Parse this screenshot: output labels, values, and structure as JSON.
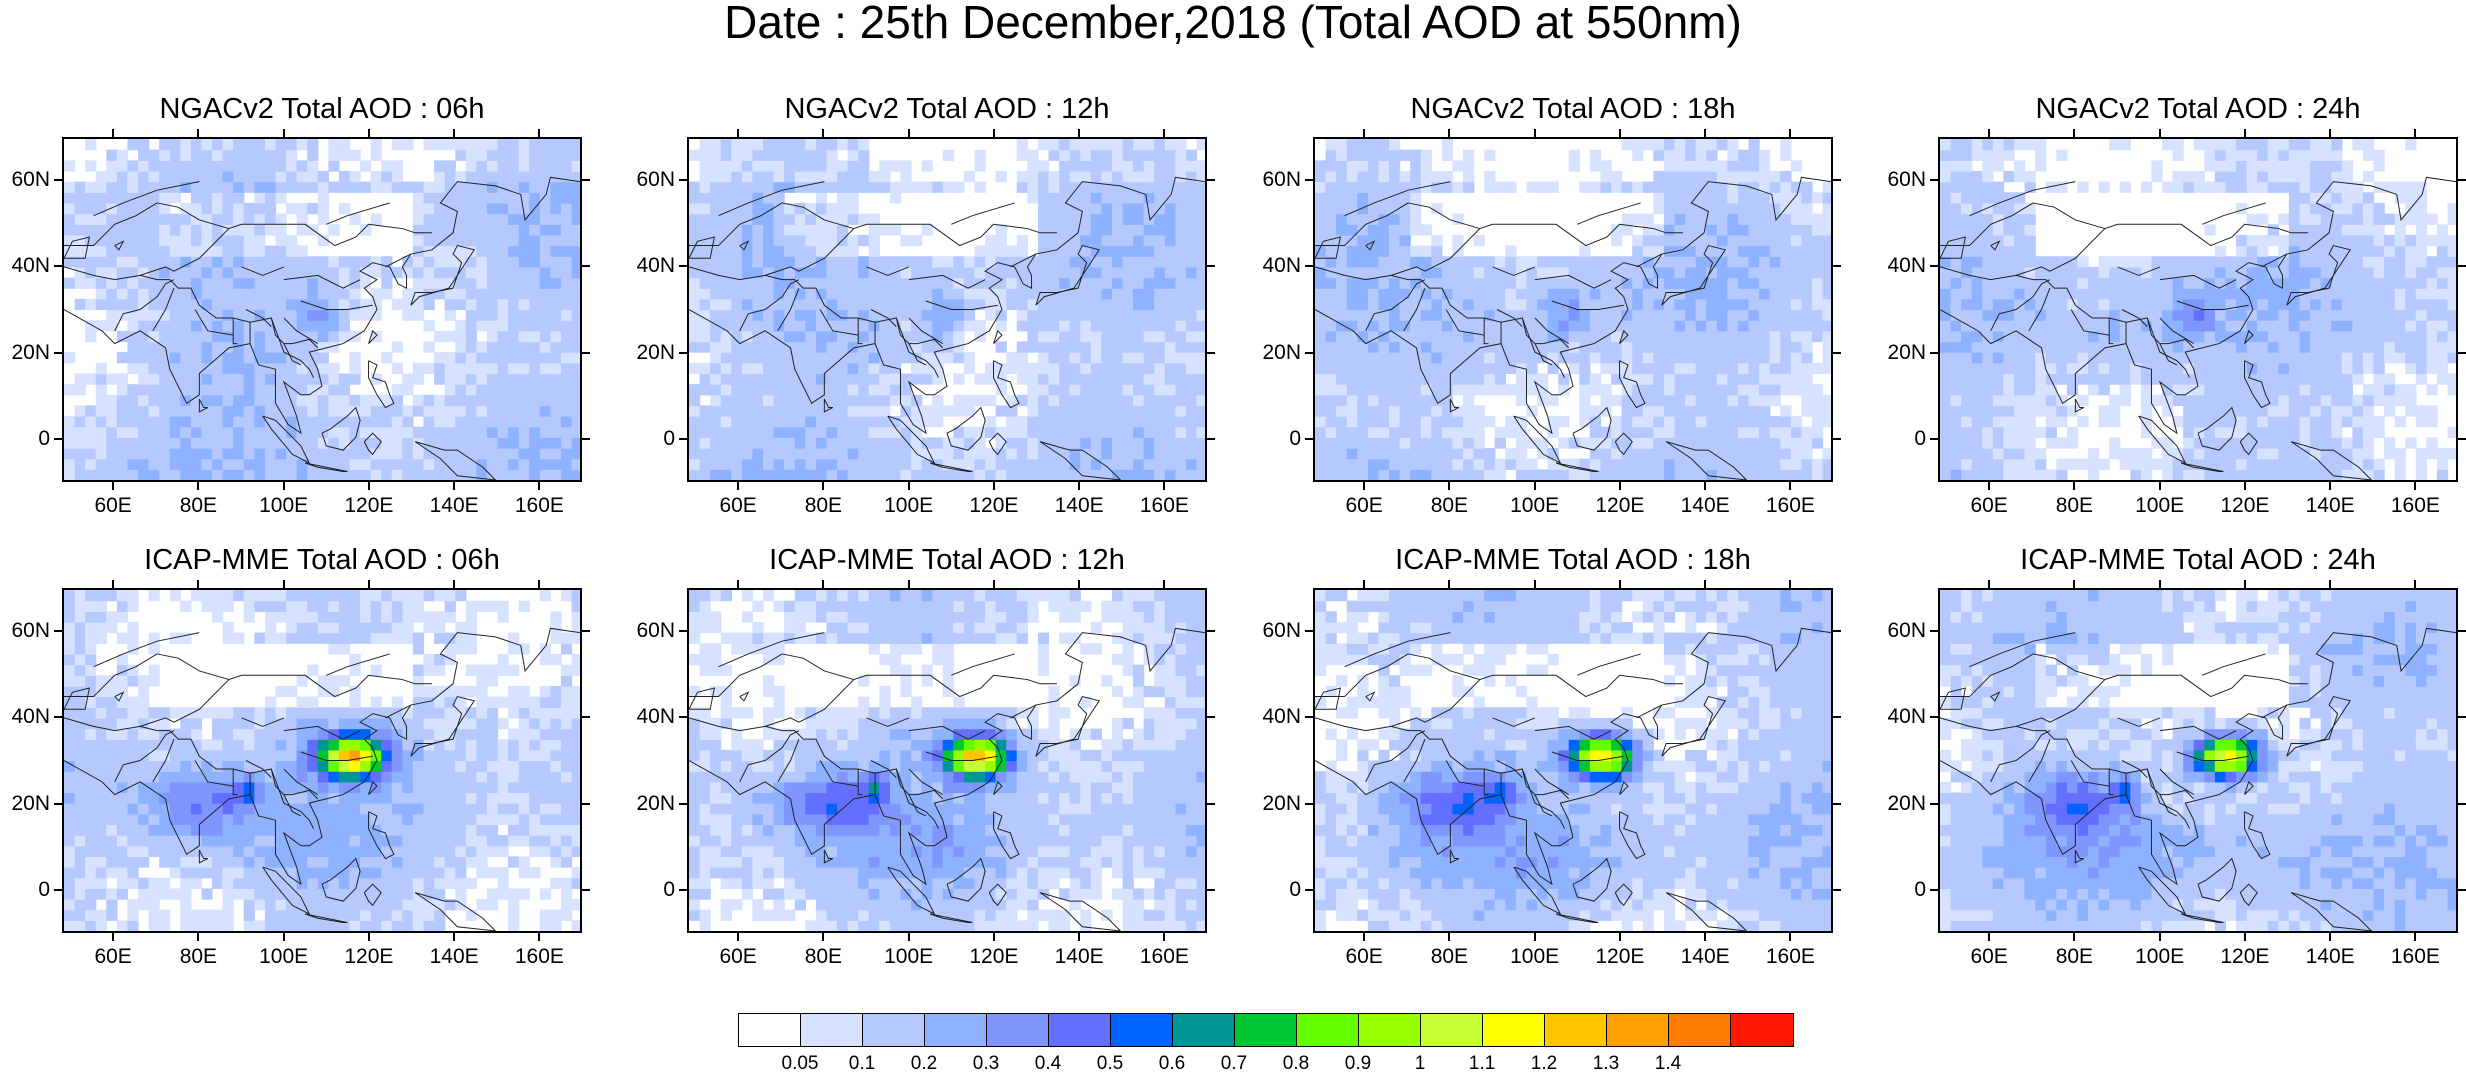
{
  "title": "Date : 25th December,2018 (Total AOD at 550nm)",
  "panels": [
    {
      "id": "ngac-06",
      "title": "NGACv2 Total AOD : 06h",
      "model": "NGACv2",
      "hour": "06h"
    },
    {
      "id": "ngac-12",
      "title": "NGACv2 Total AOD : 12h",
      "model": "NGACv2",
      "hour": "12h"
    },
    {
      "id": "ngac-18",
      "title": "NGACv2 Total AOD : 18h",
      "model": "NGACv2",
      "hour": "18h"
    },
    {
      "id": "ngac-24",
      "title": "NGACv2 Total AOD : 24h",
      "model": "NGACv2",
      "hour": "24h"
    },
    {
      "id": "icap-06",
      "title": "ICAP-MME Total AOD : 06h",
      "model": "ICAP-MME",
      "hour": "06h"
    },
    {
      "id": "icap-12",
      "title": "ICAP-MME Total AOD : 12h",
      "model": "ICAP-MME",
      "hour": "12h"
    },
    {
      "id": "icap-18",
      "title": "ICAP-MME Total AOD : 18h",
      "model": "ICAP-MME",
      "hour": "18h"
    },
    {
      "id": "icap-24",
      "title": "ICAP-MME Total AOD : 24h",
      "model": "ICAP-MME",
      "hour": "24h"
    }
  ],
  "axes": {
    "lon_range": [
      48,
      170
    ],
    "lat_range": [
      -10,
      70
    ],
    "x_ticks": [
      "60E",
      "80E",
      "100E",
      "120E",
      "140E",
      "160E"
    ],
    "x_tick_values": [
      60,
      80,
      100,
      120,
      140,
      160
    ],
    "y_ticks": [
      "60N",
      "40N",
      "20N",
      "0"
    ],
    "y_tick_values": [
      60,
      40,
      20,
      0
    ]
  },
  "colorbar": {
    "labels": [
      "0.05",
      "0.1",
      "0.2",
      "0.3",
      "0.4",
      "0.5",
      "0.6",
      "0.7",
      "0.8",
      "0.9",
      "1",
      "1.1",
      "1.2",
      "1.3",
      "1.4"
    ],
    "colors": [
      "#ffffff",
      "#d6e2ff",
      "#b5c9ff",
      "#8eb2ff",
      "#7f96ff",
      "#6370ff",
      "#0063ff",
      "#009696",
      "#00c633",
      "#63ff00",
      "#96ff00",
      "#c6ff33",
      "#ffff00",
      "#ffc600",
      "#ffa000",
      "#ff7c00",
      "#ff1900"
    ]
  }
}
